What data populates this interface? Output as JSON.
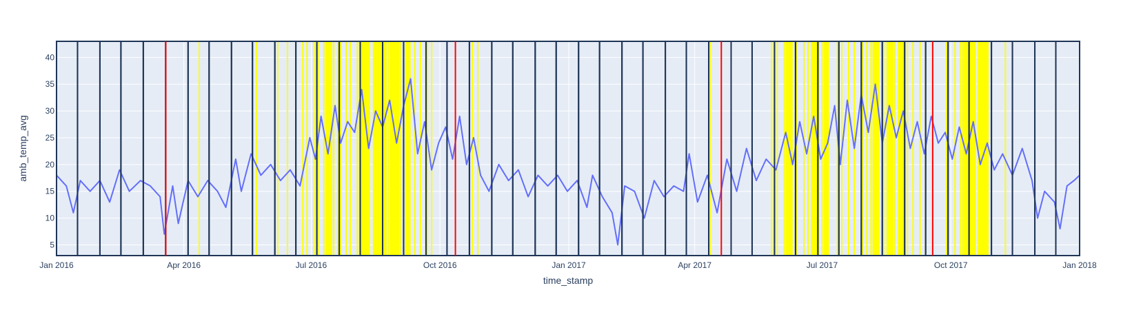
{
  "chart_data": {
    "type": "line",
    "xlabel": "time_stamp",
    "ylabel": "amb_temp_avg",
    "x_range": [
      "2016-01-01",
      "2018-01-01"
    ],
    "ylim": [
      3,
      43
    ],
    "grid": true,
    "x_ticks": [
      {
        "date": "2016-01-01",
        "label": "Jan 2016"
      },
      {
        "date": "2016-04-01",
        "label": "Apr 2016"
      },
      {
        "date": "2016-07-01",
        "label": "Jul 2016"
      },
      {
        "date": "2016-10-01",
        "label": "Oct 2016"
      },
      {
        "date": "2017-01-01",
        "label": "Jan 2017"
      },
      {
        "date": "2017-04-01",
        "label": "Apr 2017"
      },
      {
        "date": "2017-07-01",
        "label": "Jul 2017"
      },
      {
        "date": "2017-10-01",
        "label": "Oct 2017"
      },
      {
        "date": "2018-01-01",
        "label": "Jan 2018"
      }
    ],
    "y_ticks": [
      {
        "value": 5,
        "label": "5"
      },
      {
        "value": 10,
        "label": "10"
      },
      {
        "value": 15,
        "label": "15"
      },
      {
        "value": 20,
        "label": "20"
      },
      {
        "value": 25,
        "label": "25"
      },
      {
        "value": 30,
        "label": "30"
      },
      {
        "value": 35,
        "label": "35"
      },
      {
        "value": 40,
        "label": "40"
      }
    ],
    "colors": {
      "series": "#636efa",
      "plot_bg": "#e5ecf6",
      "grid": "#ffffff",
      "frame": "#1f3556",
      "yellow": "#ffff00",
      "red": "#ff0000",
      "text": "#2a3f5f"
    },
    "series": [
      {
        "name": "amb_temp_avg",
        "points": [
          [
            "2016-01-01",
            18
          ],
          [
            "2016-01-08",
            16
          ],
          [
            "2016-01-13",
            11
          ],
          [
            "2016-01-18",
            17
          ],
          [
            "2016-01-25",
            15
          ],
          [
            "2016-02-01",
            17
          ],
          [
            "2016-02-08",
            13
          ],
          [
            "2016-02-15",
            19
          ],
          [
            "2016-02-22",
            15
          ],
          [
            "2016-03-01",
            17
          ],
          [
            "2016-03-08",
            16
          ],
          [
            "2016-03-15",
            14
          ],
          [
            "2016-03-18",
            7
          ],
          [
            "2016-03-24",
            16
          ],
          [
            "2016-03-28",
            9
          ],
          [
            "2016-04-04",
            17
          ],
          [
            "2016-04-11",
            14
          ],
          [
            "2016-04-18",
            17
          ],
          [
            "2016-04-25",
            15
          ],
          [
            "2016-05-01",
            12
          ],
          [
            "2016-05-08",
            21
          ],
          [
            "2016-05-12",
            15
          ],
          [
            "2016-05-19",
            22
          ],
          [
            "2016-05-26",
            18
          ],
          [
            "2016-06-02",
            20
          ],
          [
            "2016-06-09",
            17
          ],
          [
            "2016-06-16",
            19
          ],
          [
            "2016-06-23",
            16
          ],
          [
            "2016-06-30",
            25
          ],
          [
            "2016-07-04",
            21
          ],
          [
            "2016-07-08",
            29
          ],
          [
            "2016-07-13",
            22
          ],
          [
            "2016-07-18",
            31
          ],
          [
            "2016-07-22",
            24
          ],
          [
            "2016-07-27",
            28
          ],
          [
            "2016-08-01",
            26
          ],
          [
            "2016-08-06",
            34
          ],
          [
            "2016-08-11",
            23
          ],
          [
            "2016-08-16",
            30
          ],
          [
            "2016-08-21",
            27
          ],
          [
            "2016-08-26",
            32
          ],
          [
            "2016-08-31",
            24
          ],
          [
            "2016-09-05",
            31
          ],
          [
            "2016-09-10",
            36
          ],
          [
            "2016-09-15",
            22
          ],
          [
            "2016-09-20",
            28
          ],
          [
            "2016-09-25",
            19
          ],
          [
            "2016-09-30",
            24
          ],
          [
            "2016-10-05",
            27
          ],
          [
            "2016-10-10",
            21
          ],
          [
            "2016-10-15",
            29
          ],
          [
            "2016-10-20",
            20
          ],
          [
            "2016-10-25",
            25
          ],
          [
            "2016-10-30",
            18
          ],
          [
            "2016-11-05",
            15
          ],
          [
            "2016-11-12",
            20
          ],
          [
            "2016-11-19",
            17
          ],
          [
            "2016-11-26",
            19
          ],
          [
            "2016-12-03",
            14
          ],
          [
            "2016-12-10",
            18
          ],
          [
            "2016-12-17",
            16
          ],
          [
            "2016-12-24",
            18
          ],
          [
            "2016-12-31",
            15
          ],
          [
            "2017-01-07",
            17
          ],
          [
            "2017-01-14",
            12
          ],
          [
            "2017-01-18",
            18
          ],
          [
            "2017-01-25",
            14
          ],
          [
            "2017-02-01",
            11
          ],
          [
            "2017-02-05",
            5
          ],
          [
            "2017-02-10",
            16
          ],
          [
            "2017-02-17",
            15
          ],
          [
            "2017-02-24",
            10
          ],
          [
            "2017-03-03",
            17
          ],
          [
            "2017-03-10",
            14
          ],
          [
            "2017-03-17",
            16
          ],
          [
            "2017-03-24",
            15
          ],
          [
            "2017-03-28",
            22
          ],
          [
            "2017-04-03",
            13
          ],
          [
            "2017-04-10",
            18
          ],
          [
            "2017-04-17",
            11
          ],
          [
            "2017-04-24",
            21
          ],
          [
            "2017-05-01",
            15
          ],
          [
            "2017-05-08",
            23
          ],
          [
            "2017-05-15",
            17
          ],
          [
            "2017-05-22",
            21
          ],
          [
            "2017-05-29",
            19
          ],
          [
            "2017-06-05",
            26
          ],
          [
            "2017-06-10",
            20
          ],
          [
            "2017-06-15",
            28
          ],
          [
            "2017-06-20",
            22
          ],
          [
            "2017-06-25",
            29
          ],
          [
            "2017-06-30",
            21
          ],
          [
            "2017-07-05",
            24
          ],
          [
            "2017-07-10",
            31
          ],
          [
            "2017-07-14",
            20
          ],
          [
            "2017-07-19",
            32
          ],
          [
            "2017-07-24",
            23
          ],
          [
            "2017-07-29",
            33
          ],
          [
            "2017-08-03",
            26
          ],
          [
            "2017-08-08",
            35
          ],
          [
            "2017-08-13",
            24
          ],
          [
            "2017-08-18",
            31
          ],
          [
            "2017-08-23",
            25
          ],
          [
            "2017-08-28",
            30
          ],
          [
            "2017-09-02",
            23
          ],
          [
            "2017-09-07",
            28
          ],
          [
            "2017-09-12",
            22
          ],
          [
            "2017-09-17",
            29
          ],
          [
            "2017-09-22",
            24
          ],
          [
            "2017-09-27",
            26
          ],
          [
            "2017-10-02",
            21
          ],
          [
            "2017-10-07",
            27
          ],
          [
            "2017-10-12",
            22
          ],
          [
            "2017-10-17",
            28
          ],
          [
            "2017-10-22",
            20
          ],
          [
            "2017-10-27",
            24
          ],
          [
            "2017-11-01",
            19
          ],
          [
            "2017-11-07",
            22
          ],
          [
            "2017-11-14",
            18
          ],
          [
            "2017-11-21",
            23
          ],
          [
            "2017-11-28",
            17
          ],
          [
            "2017-12-02",
            10
          ],
          [
            "2017-12-07",
            15
          ],
          [
            "2017-12-14",
            13
          ],
          [
            "2017-12-18",
            8
          ],
          [
            "2017-12-23",
            16
          ],
          [
            "2017-12-28",
            17
          ],
          [
            "2018-01-01",
            18
          ]
        ]
      }
    ],
    "shapes": {
      "navy_boxes": [
        [
          "2016-01-01",
          "2016-01-16"
        ],
        [
          "2016-01-16",
          "2016-02-01"
        ],
        [
          "2016-02-01",
          "2016-02-16"
        ],
        [
          "2016-02-16",
          "2016-03-03"
        ],
        [
          "2016-03-03",
          "2016-03-19"
        ],
        [
          "2016-03-19",
          "2016-04-04"
        ],
        [
          "2016-04-04",
          "2016-04-19"
        ],
        [
          "2016-04-19",
          "2016-05-05"
        ],
        [
          "2016-05-05",
          "2016-05-20"
        ],
        [
          "2016-05-20",
          "2016-06-05"
        ],
        [
          "2016-06-05",
          "2016-06-20"
        ],
        [
          "2016-06-20",
          "2016-07-05"
        ],
        [
          "2016-07-05",
          "2016-07-21"
        ],
        [
          "2016-07-21",
          "2016-08-05"
        ],
        [
          "2016-08-05",
          "2016-08-21"
        ],
        [
          "2016-08-21",
          "2016-09-05"
        ],
        [
          "2016-09-05",
          "2016-09-21"
        ],
        [
          "2016-09-21",
          "2016-10-06"
        ],
        [
          "2016-10-06",
          "2016-10-22"
        ],
        [
          "2016-10-22",
          "2016-11-07"
        ],
        [
          "2016-11-07",
          "2016-11-22"
        ],
        [
          "2016-11-22",
          "2016-12-08"
        ],
        [
          "2016-12-08",
          "2016-12-23"
        ],
        [
          "2016-12-23",
          "2017-01-08"
        ],
        [
          "2017-01-08",
          "2017-01-23"
        ],
        [
          "2017-01-23",
          "2017-02-08"
        ],
        [
          "2017-02-08",
          "2017-02-23"
        ],
        [
          "2017-02-23",
          "2017-03-11"
        ],
        [
          "2017-03-11",
          "2017-03-26"
        ],
        [
          "2017-03-26",
          "2017-04-11"
        ],
        [
          "2017-04-11",
          "2017-04-27"
        ],
        [
          "2017-04-27",
          "2017-05-12"
        ],
        [
          "2017-05-12",
          "2017-05-28"
        ],
        [
          "2017-05-28",
          "2017-06-12"
        ],
        [
          "2017-06-12",
          "2017-06-28"
        ],
        [
          "2017-06-28",
          "2017-07-13"
        ],
        [
          "2017-07-13",
          "2017-07-29"
        ],
        [
          "2017-07-29",
          "2017-08-13"
        ],
        [
          "2017-08-13",
          "2017-08-29"
        ],
        [
          "2017-08-29",
          "2017-09-13"
        ],
        [
          "2017-09-13",
          "2017-09-29"
        ],
        [
          "2017-09-29",
          "2017-10-14"
        ],
        [
          "2017-10-14",
          "2017-10-30"
        ],
        [
          "2017-10-30",
          "2017-11-14"
        ],
        [
          "2017-11-14",
          "2017-11-30"
        ],
        [
          "2017-11-30",
          "2017-12-15"
        ],
        [
          "2017-12-15",
          "2018-01-01"
        ]
      ],
      "yellow_lines": [
        "2016-04-12",
        "2016-05-23",
        "2016-06-07",
        "2016-06-14",
        "2016-06-20",
        "2016-06-25",
        "2016-06-28",
        "2016-07-03",
        "2016-07-06",
        "2016-07-10",
        "2016-07-13",
        "2016-07-17",
        "2016-07-20",
        "2016-07-22",
        "2016-07-26",
        "2016-07-29",
        "2016-08-03",
        "2016-08-08",
        "2016-08-11",
        "2016-08-17",
        "2016-08-21",
        "2016-08-25",
        "2016-08-30",
        "2016-09-03",
        "2016-09-08",
        "2016-09-13",
        "2016-09-17",
        "2016-09-22",
        "2016-09-25",
        "2016-10-24",
        "2016-10-28",
        "2017-04-12",
        "2017-05-26",
        "2017-05-30",
        "2017-06-04",
        "2017-06-08",
        "2017-06-13",
        "2017-06-18",
        "2017-06-21",
        "2017-06-26",
        "2017-07-01",
        "2017-07-12",
        "2017-07-15",
        "2017-07-20",
        "2017-07-24",
        "2017-07-30",
        "2017-08-02",
        "2017-08-05",
        "2017-08-09",
        "2017-08-14",
        "2017-08-18",
        "2017-08-22",
        "2017-08-27",
        "2017-08-31",
        "2017-09-04",
        "2017-09-09",
        "2017-09-13",
        "2017-09-28",
        "2017-10-04",
        "2017-10-08",
        "2017-10-13",
        "2017-10-18",
        "2017-10-22",
        "2017-10-25",
        "2017-11-09",
        "2017-11-14"
      ],
      "yellow_bands": [
        [
          "2016-07-11",
          "2016-07-16"
        ],
        [
          "2016-08-04",
          "2016-08-12"
        ],
        [
          "2016-08-14",
          "2016-08-24"
        ],
        [
          "2016-08-26",
          "2016-09-02"
        ],
        [
          "2016-09-06",
          "2016-09-10"
        ],
        [
          "2017-06-05",
          "2017-06-10"
        ],
        [
          "2017-06-23",
          "2017-06-29"
        ],
        [
          "2017-07-02",
          "2017-07-06"
        ],
        [
          "2017-08-06",
          "2017-08-11"
        ],
        [
          "2017-08-16",
          "2017-08-21"
        ],
        [
          "2017-08-24",
          "2017-08-29"
        ],
        [
          "2017-10-09",
          "2017-10-19"
        ],
        [
          "2017-10-20",
          "2017-10-28"
        ]
      ],
      "red_lines": [
        "2016-03-19",
        "2016-10-12",
        "2017-04-20",
        "2017-09-18"
      ]
    }
  }
}
